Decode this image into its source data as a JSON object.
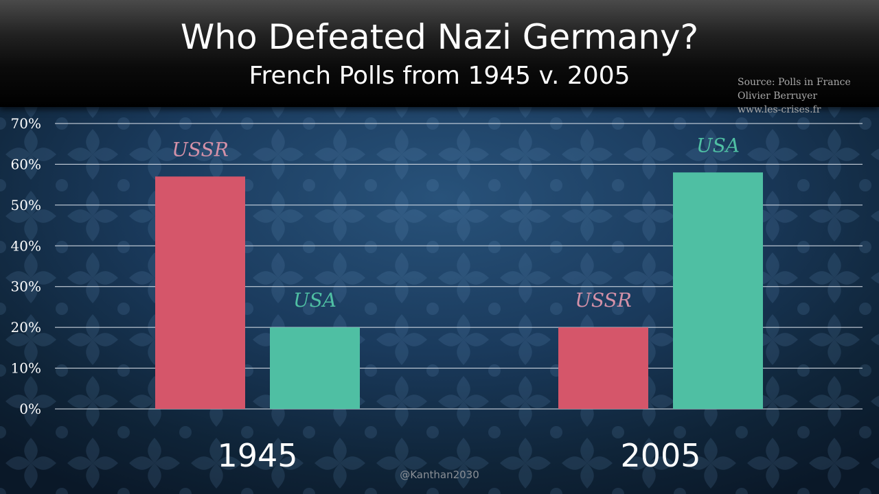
{
  "header": {
    "title": "Who Defeated Nazi Germany?",
    "subtitle": "French Polls from 1945 v. 2005"
  },
  "source": [
    "Source: Polls in France",
    "Olivier Berruyer",
    "www.les-crises.fr"
  ],
  "watermark": "@Kanthan2030",
  "colors": {
    "ussr": "#d5566a",
    "usa": "#4fbfa3",
    "ussr_label": "#d491a8",
    "usa_label": "#4fbfa3",
    "gridline": "#dfe6ee"
  },
  "chart_data": {
    "type": "bar",
    "title": "Who Defeated Nazi Germany?",
    "subtitle": "French Polls from 1945 v. 2005",
    "categories": [
      "1945",
      "2005"
    ],
    "series": [
      {
        "name": "USSR",
        "values": [
          57,
          20
        ]
      },
      {
        "name": "USA",
        "values": [
          20,
          58
        ]
      }
    ],
    "ylim": [
      0,
      70
    ],
    "yticks": [
      0,
      10,
      20,
      30,
      40,
      50,
      60,
      70
    ],
    "ytick_labels": [
      "0%",
      "10%",
      "20%",
      "30%",
      "40%",
      "50%",
      "60%",
      "70%"
    ],
    "grid": true,
    "xlabel": "",
    "ylabel": "",
    "legend": "none"
  }
}
